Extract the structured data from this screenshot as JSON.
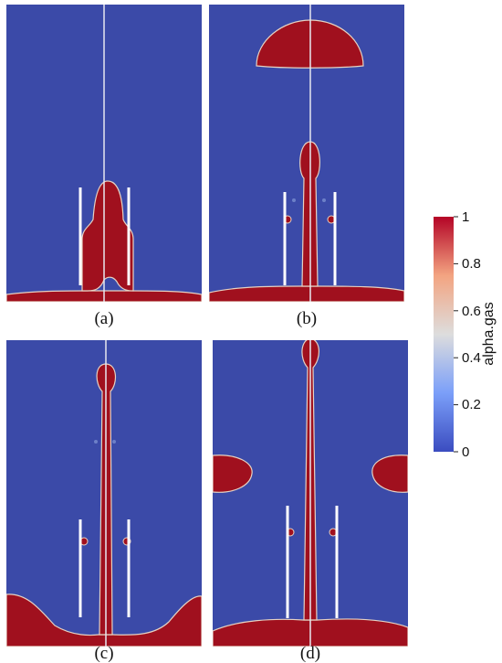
{
  "panels": [
    {
      "id": "a",
      "caption": "(a)"
    },
    {
      "id": "b",
      "caption": "(b)"
    },
    {
      "id": "c",
      "caption": "(c)"
    },
    {
      "id": "d",
      "caption": "(d)"
    }
  ],
  "colorbar": {
    "title": "alpha.gas",
    "ticks": [
      "1",
      "0.8",
      "0.6",
      "0.4",
      "0.2",
      "0"
    ],
    "min_value": 0,
    "max_value": 1,
    "colors": {
      "low": "#3b4cc0",
      "mid": "#dddddd",
      "high": "#b40426"
    }
  },
  "colors": {
    "liquid": "#3b4aa8",
    "gas": "#a0101e",
    "interface": "#e6d2c3",
    "guide_line": "#e8e8f0"
  }
}
